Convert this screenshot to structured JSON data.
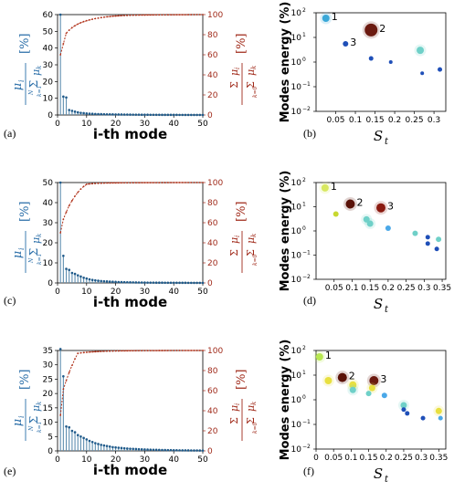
{
  "panel_labels": [
    "(a)",
    "(b)",
    "(c)",
    "(d)",
    "(e)",
    "(f)"
  ],
  "colors": {
    "bar": "#5f8fb0",
    "dot": "#1f5a8a",
    "cum": "#b03018",
    "cum_axis": "#a02a1a",
    "left_label": "#2a6ea8",
    "frame": "#000000"
  },
  "left_plot": {
    "xlabel": "i-th mode",
    "ylabel_left": "μ_i / Σ_{k=1}^{N_s} μ_k [%]",
    "ylabel_right": "Σ_{k=1}^{i} μ_i / Σ_{k=0}^{N_s} μ_k [%]",
    "xticks": [
      "0",
      "10",
      "20",
      "30",
      "40",
      "50"
    ]
  },
  "right_plot": {
    "xlabel": "S_t",
    "ylabel": "Modes  energy (%)",
    "yticks": [
      "10^2",
      "10^1",
      "10^0",
      "10^-1",
      "10^-2"
    ]
  },
  "chart_data": [
    {
      "type": "bar",
      "panel": "(a)",
      "xlabel": "i-th mode",
      "ylabel": "μ_i / Σ μ_k [%]",
      "ylabel_right": "Σ μ_i / Σ μ_k [%]",
      "xlim": [
        0,
        50
      ],
      "ylim": [
        0,
        60
      ],
      "ylim_right": [
        0,
        100
      ],
      "yticks": [
        0,
        10,
        20,
        30,
        40,
        50,
        60
      ],
      "yticks_right": [
        0,
        20,
        40,
        60,
        80,
        100
      ],
      "x": [
        1,
        2,
        3,
        4,
        5,
        6,
        7,
        8,
        9,
        10,
        11,
        12,
        13,
        14,
        15,
        16,
        17,
        18,
        19,
        20,
        21,
        22,
        23,
        24,
        25,
        26,
        27,
        28,
        29,
        30,
        31,
        32,
        33,
        34,
        35,
        36,
        37,
        38,
        39,
        40,
        41,
        42,
        43,
        44,
        45,
        46,
        47,
        48,
        49,
        50
      ],
      "values": [
        60,
        11,
        10.5,
        3,
        2.5,
        2,
        1.6,
        1.3,
        1.1,
        0.9,
        0.8,
        0.7,
        0.6,
        0.55,
        0.5,
        0.45,
        0.4,
        0.38,
        0.35,
        0.32,
        0.3,
        0.28,
        0.26,
        0.24,
        0.22,
        0.2,
        0.19,
        0.18,
        0.17,
        0.16,
        0.15,
        0.14,
        0.13,
        0.12,
        0.11,
        0.1,
        0.1,
        0.09,
        0.09,
        0.08,
        0.08,
        0.07,
        0.07,
        0.06,
        0.06,
        0.05,
        0.05,
        0.05,
        0.04,
        0.04
      ],
      "cumulative": [
        60,
        71,
        81.5,
        84.5,
        87,
        89,
        90.6,
        91.9,
        93,
        93.9,
        94.7,
        95.4,
        96,
        96.5,
        97,
        97.4,
        97.8,
        98.1,
        98.4,
        98.6,
        98.8,
        99,
        99.1,
        99.2,
        99.3,
        99.4,
        99.45,
        99.5,
        99.55,
        99.6,
        99.63,
        99.66,
        99.7,
        99.72,
        99.75,
        99.78,
        99.8,
        99.82,
        99.84,
        99.86,
        99.88,
        99.9,
        99.91,
        99.92,
        99.94,
        99.95,
        99.96,
        99.97,
        99.98,
        100
      ]
    },
    {
      "type": "scatter",
      "panel": "(b)",
      "xlabel": "S_t",
      "ylabel": "Modes energy (%)",
      "xlim": [
        0,
        0.33
      ],
      "ylim": [
        0.01,
        100
      ],
      "yscale": "log",
      "xticks": [
        0.05,
        0.1,
        0.15,
        0.2,
        0.25,
        0.3
      ],
      "points": [
        {
          "x": 0.025,
          "y": 60,
          "label": "1",
          "color": "#3aa8d8",
          "size": 4
        },
        {
          "x": 0.14,
          "y": 20,
          "label": "2",
          "color": "#6b1a10",
          "size": 7
        },
        {
          "x": 0.075,
          "y": 5.5,
          "label": "3",
          "color": "#1f4fb8",
          "size": 3
        },
        {
          "x": 0.14,
          "y": 1.4,
          "label": "",
          "color": "#1f4fb8",
          "size": 2.5
        },
        {
          "x": 0.19,
          "y": 1.0,
          "label": "",
          "color": "#1f4fb8",
          "size": 2
        },
        {
          "x": 0.265,
          "y": 3.0,
          "label": "",
          "color": "#6fd0c8",
          "size": 4
        },
        {
          "x": 0.27,
          "y": 0.35,
          "label": "",
          "color": "#1f4fb8",
          "size": 2
        },
        {
          "x": 0.315,
          "y": 0.5,
          "label": "",
          "color": "#1f4fb8",
          "size": 2.5
        }
      ]
    },
    {
      "type": "bar",
      "panel": "(c)",
      "xlabel": "i-th mode",
      "ylabel": "μ_i / Σ μ_k [%]",
      "ylabel_right": "Σ μ_i / Σ μ_k [%]",
      "xlim": [
        0,
        50
      ],
      "ylim": [
        0,
        50
      ],
      "ylim_right": [
        0,
        100
      ],
      "yticks": [
        0,
        10,
        20,
        30,
        40,
        50
      ],
      "yticks_right": [
        0,
        20,
        40,
        60,
        80,
        100
      ],
      "x": [
        1,
        2,
        3,
        4,
        5,
        6,
        7,
        8,
        9,
        10,
        11,
        12,
        13,
        14,
        15,
        16,
        17,
        18,
        19,
        20,
        21,
        22,
        23,
        24,
        25,
        26,
        27,
        28,
        29,
        30,
        31,
        32,
        33,
        34,
        35,
        36,
        37,
        38,
        39,
        40,
        41,
        42,
        43,
        44,
        45,
        46,
        47,
        48,
        49,
        50
      ],
      "values": [
        50,
        13.5,
        7,
        6.5,
        5,
        4.5,
        3.8,
        3.2,
        2.6,
        2.2,
        1.8,
        1.5,
        1.3,
        1.1,
        0.95,
        0.85,
        0.75,
        0.65,
        0.58,
        0.52,
        0.46,
        0.42,
        0.38,
        0.34,
        0.3,
        0.28,
        0.25,
        0.23,
        0.21,
        0.19,
        0.17,
        0.16,
        0.15,
        0.14,
        0.13,
        0.12,
        0.11,
        0.1,
        0.09,
        0.09,
        0.08,
        0.08,
        0.07,
        0.07,
        0.06,
        0.06,
        0.05,
        0.05,
        0.05,
        0.04
      ],
      "cumulative": [
        50,
        63.5,
        70.5,
        77,
        82,
        86.5,
        90.3,
        93.5,
        96.1,
        98.3,
        98.6,
        98.9,
        99.1,
        99.25,
        99.35,
        99.45,
        99.52,
        99.58,
        99.63,
        99.67,
        99.7,
        99.73,
        99.76,
        99.78,
        99.8,
        99.82,
        99.84,
        99.85,
        99.86,
        99.87,
        99.88,
        99.89,
        99.9,
        99.91,
        99.92,
        99.93,
        99.94,
        99.95,
        99.95,
        99.96,
        99.96,
        99.97,
        99.97,
        99.98,
        99.98,
        99.99,
        99.99,
        99.99,
        100,
        100
      ]
    },
    {
      "type": "scatter",
      "panel": "(d)",
      "xlabel": "S_t",
      "ylabel": "Modes energy (%)",
      "xlim": [
        0,
        0.36
      ],
      "ylim": [
        0.01,
        100
      ],
      "yscale": "log",
      "xticks": [
        0.05,
        0.1,
        0.15,
        0.2,
        0.25,
        0.3,
        0.35
      ],
      "points": [
        {
          "x": 0.025,
          "y": 60,
          "label": "1",
          "color": "#d8e860",
          "size": 4
        },
        {
          "x": 0.095,
          "y": 13,
          "label": "2",
          "color": "#5a1208",
          "size": 5
        },
        {
          "x": 0.18,
          "y": 9,
          "label": "3",
          "color": "#8a1a10",
          "size": 5
        },
        {
          "x": 0.055,
          "y": 5,
          "label": "",
          "color": "#c8d830",
          "size": 3
        },
        {
          "x": 0.14,
          "y": 3,
          "label": "",
          "color": "#6fd0c8",
          "size": 3.5
        },
        {
          "x": 0.15,
          "y": 2,
          "label": "",
          "color": "#6fd0c8",
          "size": 3.5
        },
        {
          "x": 0.2,
          "y": 1.3,
          "label": "",
          "color": "#4aa8e8",
          "size": 3
        },
        {
          "x": 0.275,
          "y": 0.8,
          "label": "",
          "color": "#6fd0c8",
          "size": 3
        },
        {
          "x": 0.31,
          "y": 0.55,
          "label": "",
          "color": "#1f4fb8",
          "size": 2.5
        },
        {
          "x": 0.31,
          "y": 0.3,
          "label": "",
          "color": "#1f4fb8",
          "size": 2.5
        },
        {
          "x": 0.335,
          "y": 0.18,
          "label": "",
          "color": "#1f4fb8",
          "size": 2.5
        },
        {
          "x": 0.34,
          "y": 0.45,
          "label": "",
          "color": "#6fd0c8",
          "size": 3
        }
      ]
    },
    {
      "type": "bar",
      "panel": "(e)",
      "xlabel": "i-th mode",
      "ylabel": "μ_i / Σ μ_k [%]",
      "ylabel_right": "Σ μ_i / Σ μ_k [%]",
      "xlim": [
        0,
        50
      ],
      "ylim": [
        0,
        35
      ],
      "ylim_right": [
        0,
        100
      ],
      "yticks": [
        0,
        5,
        10,
        15,
        20,
        25,
        30,
        35
      ],
      "yticks_right": [
        0,
        20,
        40,
        60,
        80,
        100
      ],
      "x": [
        1,
        2,
        3,
        4,
        5,
        6,
        7,
        8,
        9,
        10,
        11,
        12,
        13,
        14,
        15,
        16,
        17,
        18,
        19,
        20,
        21,
        22,
        23,
        24,
        25,
        26,
        27,
        28,
        29,
        30,
        31,
        32,
        33,
        34,
        35,
        36,
        37,
        38,
        39,
        40,
        41,
        42,
        43,
        44,
        45,
        46,
        47,
        48,
        49,
        50
      ],
      "values": [
        35.5,
        26,
        8.5,
        8.2,
        7,
        6.5,
        5.5,
        5,
        4.5,
        4,
        3.5,
        3.1,
        2.7,
        2.4,
        2.1,
        1.9,
        1.7,
        1.5,
        1.3,
        1.2,
        1.1,
        1,
        0.9,
        0.8,
        0.75,
        0.7,
        0.65,
        0.6,
        0.55,
        0.5,
        0.46,
        0.42,
        0.4,
        0.37,
        0.34,
        0.32,
        0.3,
        0.28,
        0.26,
        0.24,
        0.22,
        0.2,
        0.19,
        0.18,
        0.17,
        0.16,
        0.15,
        0.14,
        0.13,
        0.12
      ],
      "cumulative": [
        35.5,
        61.5,
        70,
        78.2,
        85.2,
        91.7,
        97.2,
        97.6,
        97.9,
        98.2,
        98.4,
        98.6,
        98.8,
        98.95,
        99.1,
        99.2,
        99.3,
        99.38,
        99.45,
        99.52,
        99.58,
        99.63,
        99.68,
        99.72,
        99.75,
        99.78,
        99.81,
        99.83,
        99.85,
        99.87,
        99.89,
        99.9,
        99.91,
        99.92,
        99.93,
        99.94,
        99.95,
        99.95,
        99.96,
        99.96,
        99.97,
        99.97,
        99.98,
        99.98,
        99.98,
        99.99,
        99.99,
        99.99,
        100,
        100
      ]
    },
    {
      "type": "scatter",
      "panel": "(f)",
      "xlabel": "S_t",
      "ylabel": "Modes energy (%)",
      "xlim": [
        0,
        0.37
      ],
      "ylim": [
        0.01,
        100
      ],
      "yscale": "log",
      "xticks": [
        0,
        0.05,
        0.1,
        0.15,
        0.2,
        0.25,
        0.3,
        0.35
      ],
      "points": [
        {
          "x": 0.01,
          "y": 55,
          "label": "1",
          "color": "#b8e850",
          "size": 4
        },
        {
          "x": 0.035,
          "y": 6,
          "label": "",
          "color": "#e8e040",
          "size": 4
        },
        {
          "x": 0.075,
          "y": 8,
          "label": "2",
          "color": "#5a1208",
          "size": 5
        },
        {
          "x": 0.105,
          "y": 4,
          "label": "",
          "color": "#e8e040",
          "size": 4
        },
        {
          "x": 0.105,
          "y": 2.5,
          "label": "",
          "color": "#6fd0c8",
          "size": 3.5
        },
        {
          "x": 0.165,
          "y": 6,
          "label": "3",
          "color": "#6b1a10",
          "size": 5
        },
        {
          "x": 0.16,
          "y": 3,
          "label": "",
          "color": "#e8e040",
          "size": 3.5
        },
        {
          "x": 0.15,
          "y": 1.8,
          "label": "",
          "color": "#6fd0c8",
          "size": 3
        },
        {
          "x": 0.195,
          "y": 1.5,
          "label": "",
          "color": "#4aa8e8",
          "size": 3
        },
        {
          "x": 0.25,
          "y": 0.6,
          "label": "",
          "color": "#6fd0c8",
          "size": 3.5
        },
        {
          "x": 0.25,
          "y": 0.4,
          "label": "",
          "color": "#1f4fb8",
          "size": 2.5
        },
        {
          "x": 0.26,
          "y": 0.28,
          "label": "",
          "color": "#1f4fb8",
          "size": 2.5
        },
        {
          "x": 0.305,
          "y": 0.18,
          "label": "",
          "color": "#1f4fb8",
          "size": 2.5
        },
        {
          "x": 0.35,
          "y": 0.35,
          "label": "",
          "color": "#e8e040",
          "size": 3.5
        },
        {
          "x": 0.355,
          "y": 0.18,
          "label": "",
          "color": "#4aa8e8",
          "size": 2.5
        }
      ]
    }
  ]
}
